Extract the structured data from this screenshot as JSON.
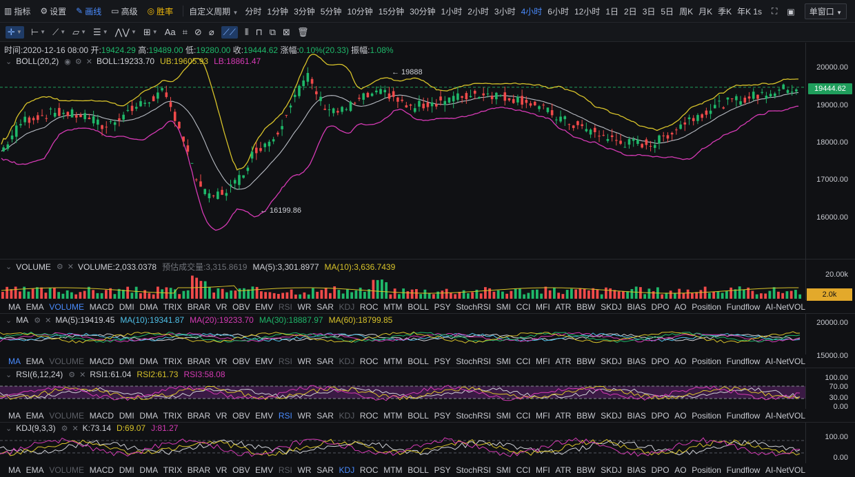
{
  "toolbar": {
    "items": [
      {
        "label": "指标",
        "icon": "indicator-icon"
      },
      {
        "label": "设置",
        "icon": "gear-icon"
      },
      {
        "label": "画线",
        "icon": "pencil-icon",
        "active": true
      },
      {
        "label": "高级",
        "icon": "window-icon"
      },
      {
        "label": "胜率",
        "icon": "target-icon",
        "gold": true
      }
    ],
    "custom_period": "自定义周期",
    "periods": [
      "分时",
      "1分钟",
      "3分钟",
      "5分钟",
      "10分钟",
      "15分钟",
      "30分钟",
      "1小时",
      "2小时",
      "3小时",
      "4小时",
      "6小时",
      "12小时",
      "1日",
      "2日",
      "3日",
      "5日",
      "周K",
      "月K",
      "季K",
      "年K"
    ],
    "active_period": "4小时",
    "refresh": "1s",
    "window_select": "单窗口"
  },
  "drawing_tools": [
    "crosshair-icon",
    "line-icon",
    "trend-icon",
    "shape-icon",
    "parallel-icon",
    "wave-icon",
    "measure-icon",
    "text-icon",
    "fib-icon",
    "ellipse-icon",
    "brush-icon",
    "pattern-icon",
    "lock-icon",
    "copy-icon",
    "delete-sub-icon",
    "trash-icon"
  ],
  "drawing_text_label": "Aa",
  "info": {
    "time_label": "时间:",
    "time": "2020-12-16 08:00",
    "open_label": "开:",
    "open": "19424.29",
    "high_label": "高:",
    "high": "19489.00",
    "low_label": "低:",
    "low": "19280.00",
    "close_label": "收:",
    "close": "19444.62",
    "change_label": "涨幅:",
    "change": "0.10%(20.33)",
    "amp_label": "振幅:",
    "amp": "1.08%"
  },
  "boll": {
    "name": "BOLL(20,2)",
    "boll": "BOLL:19233.70",
    "ub": "UB:19605.93",
    "lb": "LB:18861.47",
    "high_mark": "← 19888",
    "low_mark": "← 16199.86"
  },
  "price_axis": {
    "labels": [
      "20000.00",
      "19000.00",
      "18000.00",
      "17000.00",
      "16000.00"
    ],
    "current": "19444.62"
  },
  "volume": {
    "name": "VOLUME",
    "vol": "VOLUME:2,033.0378",
    "est": "预估成交量:3,315.8619",
    "ma5": "MA(5):3,301.8977",
    "ma10": "MA(10):3,636.7439",
    "axis": "20.00k",
    "tag": "2.0k"
  },
  "ma": {
    "name": "MA",
    "ma5": "MA(5):19419.45",
    "ma10": "MA(10):19341.87",
    "ma20": "MA(20):19233.70",
    "ma30": "MA(30):18887.97",
    "ma60": "MA(60):18799.85",
    "axis": [
      "20000.00",
      "15000.00"
    ]
  },
  "rsi": {
    "name": "RSI(6,12,24)",
    "r1": "RSI1:61.04",
    "r2": "RSI2:61.73",
    "r3": "RSI3:58.08",
    "axis": [
      "100.00",
      "70.00",
      "30.00",
      "0.00"
    ]
  },
  "kdj": {
    "name": "KDJ(9,3,3)",
    "k": "K:73.14",
    "d": "D:69.07",
    "j": "J:81.27",
    "axis": [
      "100.00",
      "0.00"
    ]
  },
  "tabs": [
    "MA",
    "EMA",
    "VOLUME",
    "MACD",
    "DMI",
    "DMA",
    "TRIX",
    "BRAR",
    "VR",
    "OBV",
    "EMV",
    "RSI",
    "WR",
    "SAR",
    "KDJ",
    "ROC",
    "MTM",
    "BOLL",
    "PSY",
    "StochRSI",
    "SMI",
    "CCI",
    "MFI",
    "ATR",
    "BBW",
    "SKDJ",
    "BIAS",
    "DPO",
    "AO",
    "Position",
    "Fundflow",
    "AI-NetVOL"
  ],
  "tab_states": {
    "vol": {
      "active": "VOLUME",
      "dim": [
        "RSI",
        "KDJ"
      ]
    },
    "ma": {
      "active": "MA",
      "dim": [
        "VOLUME",
        "RSI",
        "KDJ"
      ]
    },
    "rsi": {
      "active": "RSI",
      "dim": [
        "VOLUME",
        "KDJ"
      ]
    },
    "kdj": {
      "active": "KDJ",
      "dim": [
        "VOLUME",
        "RSI"
      ]
    }
  },
  "colors": {
    "up": "#1fb86a",
    "down": "#f04a4a",
    "boll_mid": "#b8bcc4",
    "ub": "#d8c32a",
    "lb": "#d63ab5",
    "accent": "#4a8cff"
  }
}
